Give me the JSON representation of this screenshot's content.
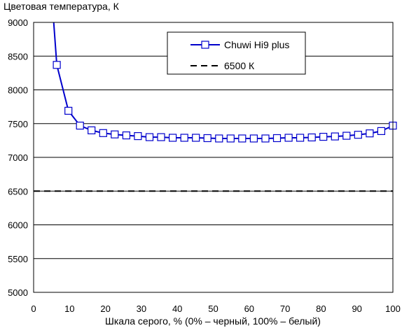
{
  "chart_data": {
    "type": "line",
    "title": "",
    "ylabel": "Цветовая температура, К",
    "xlabel": "Шкала серого, % (0% – черный, 100% – белый)",
    "xlim": [
      0,
      100
    ],
    "ylim": [
      5000,
      9000
    ],
    "xticks": [
      "0",
      "10",
      "20",
      "30",
      "40",
      "50",
      "60",
      "70",
      "80",
      "90",
      "100"
    ],
    "yticks": [
      "5000",
      "5500",
      "6000",
      "6500",
      "7000",
      "7500",
      "8000",
      "8500",
      "9000"
    ],
    "grid": "horizontal",
    "legend_position": "top-right",
    "series": [
      {
        "name": "Chuwi Hi9 plus",
        "color": "#0000cc",
        "marker": "square",
        "x": [
          6.45,
          9.68,
          12.9,
          16.13,
          19.35,
          22.58,
          25.81,
          29.03,
          32.26,
          35.48,
          38.71,
          41.94,
          45.16,
          48.39,
          51.61,
          54.84,
          58.06,
          61.29,
          64.52,
          67.74,
          70.97,
          74.19,
          77.42,
          80.65,
          83.87,
          87.1,
          90.32,
          93.55,
          96.77,
          100
        ],
        "y": [
          8370,
          7690,
          7470,
          7400,
          7360,
          7340,
          7325,
          7315,
          7300,
          7300,
          7290,
          7290,
          7290,
          7285,
          7280,
          7280,
          7280,
          7280,
          7280,
          7285,
          7290,
          7290,
          7295,
          7305,
          7310,
          7320,
          7335,
          7355,
          7390,
          7470
        ],
        "line_start": {
          "x": 5.6,
          "y": 9000
        }
      },
      {
        "name": "6500 К",
        "color": "#000000",
        "style": "dashed",
        "x": [
          0,
          100
        ],
        "y": [
          6500,
          6500
        ]
      }
    ]
  }
}
